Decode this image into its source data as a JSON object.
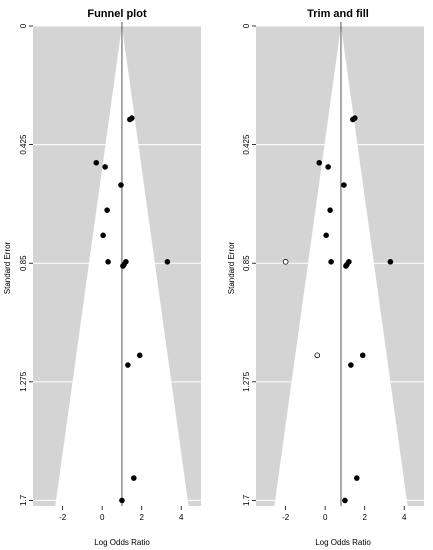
{
  "figure": {
    "panels": [
      {
        "title": "Funnel plot",
        "xlabel": "Log Odds Ratio",
        "ylabel": "Standard Error"
      },
      {
        "title": "Trim and fill",
        "xlabel": "Log Odds Ratio",
        "ylabel": "Standard Error"
      }
    ]
  },
  "colors": {
    "funnel_region": "#d4d4d4",
    "inside_region": "#ffffff",
    "gridline": "#ffffff",
    "observed_point": "#000000",
    "imputed_point_fill": "#ffffff",
    "imputed_point_stroke": "#000000"
  },
  "chart_data": [
    {
      "type": "scatter",
      "title": "Funnel plot",
      "xlabel": "Log Odds Ratio",
      "ylabel": "Standard Error",
      "xlim": [
        -3.5,
        5
      ],
      "ylim": [
        1.72,
        0
      ],
      "x_ticks": [
        -2,
        0,
        2,
        4
      ],
      "y_ticks": [
        0,
        0.425,
        0.85,
        1.275,
        1.7
      ],
      "y_tick_labels": [
        "0",
        "0.425",
        "0.85",
        "1.275",
        "1.7"
      ],
      "y_reversed": true,
      "grid": true,
      "pooled_estimate": 1.0,
      "funnel_half_width_per_se": 1.96,
      "series": [
        {
          "x": [
            1.5,
            1.4,
            -0.3,
            0.15,
            0.95,
            0.25,
            0.05,
            0.3,
            1.2,
            1.1,
            1.05,
            3.3,
            1.9,
            1.3,
            1.6,
            1.0
          ],
          "y": [
            0.33,
            0.335,
            0.49,
            0.505,
            0.57,
            0.66,
            0.75,
            0.845,
            0.845,
            0.855,
            0.86,
            0.845,
            1.18,
            1.215,
            1.62,
            1.7
          ]
        }
      ]
    },
    {
      "type": "scatter",
      "title": "Trim and fill",
      "xlabel": "Log Odds Ratio",
      "ylabel": "Standard Error",
      "xlim": [
        -3.5,
        5
      ],
      "ylim": [
        1.72,
        0
      ],
      "x_ticks": [
        -2,
        0,
        2,
        4
      ],
      "y_ticks": [
        0,
        0.425,
        0.85,
        1.275,
        1.7
      ],
      "y_tick_labels": [
        "0",
        "0.425",
        "0.85",
        "1.275",
        "1.7"
      ],
      "y_reversed": true,
      "grid": true,
      "pooled_estimate": 0.8,
      "funnel_half_width_per_se": 1.96,
      "series": [
        {
          "x": [
            1.5,
            1.4,
            -0.3,
            0.15,
            0.95,
            0.25,
            0.05,
            0.3,
            1.2,
            1.1,
            1.05,
            3.3,
            1.9,
            1.3,
            1.6,
            1.0
          ],
          "y": [
            0.33,
            0.335,
            0.49,
            0.505,
            0.57,
            0.66,
            0.75,
            0.845,
            0.845,
            0.855,
            0.86,
            0.845,
            1.18,
            1.215,
            1.62,
            1.7
          ]
        },
        {
          "x": [
            -2.0,
            -0.4
          ],
          "y": [
            0.845,
            1.18
          ],
          "open": true
        }
      ]
    }
  ]
}
